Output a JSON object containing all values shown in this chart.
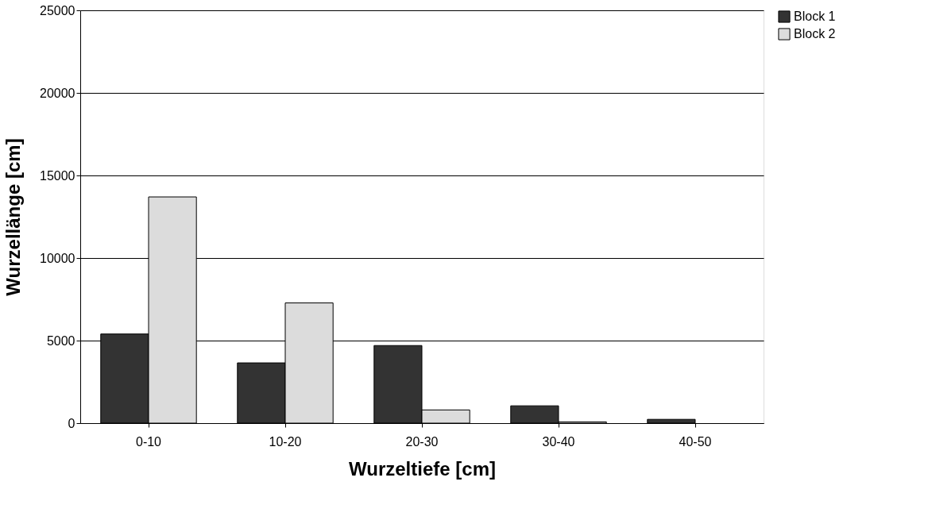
{
  "chart_data": {
    "type": "bar",
    "xlabel": "Wurzeltiefe [cm]",
    "ylabel": "Wurzellänge [cm]",
    "categories": [
      "0-10",
      "10-20",
      "20-30",
      "30-40",
      "40-50"
    ],
    "series": [
      {
        "name": "Block 1",
        "color": "#333333",
        "values": [
          5400,
          3650,
          4700,
          1050,
          230
        ]
      },
      {
        "name": "Block 2",
        "color": "#dcdcdc",
        "values": [
          13700,
          7280,
          800,
          80,
          null
        ]
      }
    ],
    "ylim": [
      0,
      25000
    ],
    "yticks": [
      0,
      5000,
      10000,
      15000,
      20000,
      25000
    ],
    "grid": "y",
    "legend": "right"
  }
}
